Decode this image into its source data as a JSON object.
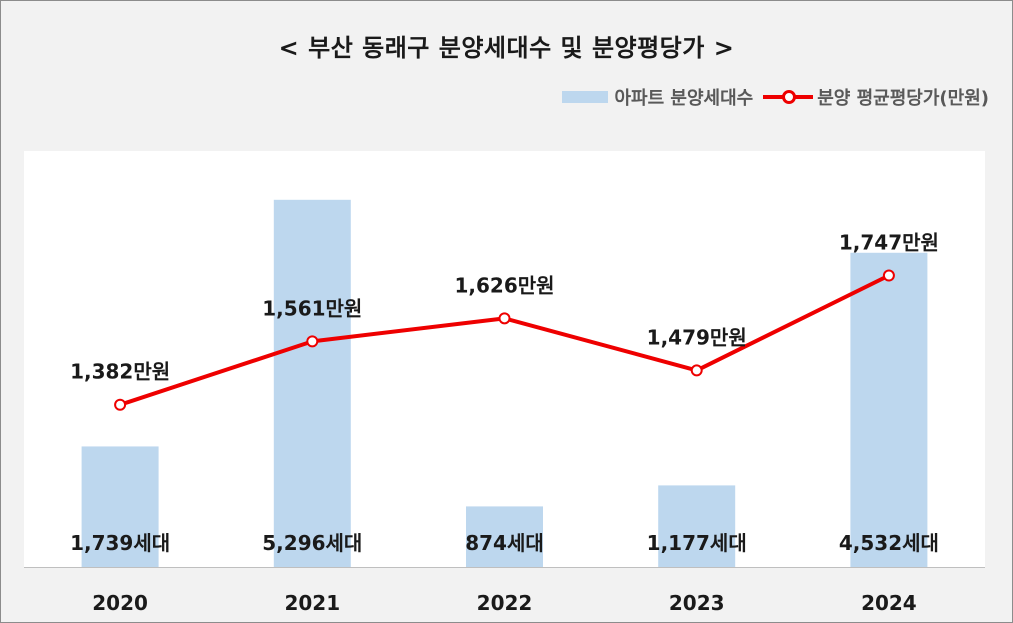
{
  "title": "< 부산 동래구 분양세대수 및 분양평당가 >",
  "legend": {
    "bar_label": "아파트 분양세대수",
    "line_label": "분양 평균평당가(만원)"
  },
  "colors": {
    "bar": "#bdd7ee",
    "line": "#ee0000",
    "plot_bg": "#ffffff",
    "page_bg": "#f2f2f2"
  },
  "chart_data": {
    "type": "bar",
    "title": "< 부산 동래구 분양세대수 및 분양평당가 >",
    "categories": [
      "2020",
      "2021",
      "2022",
      "2023",
      "2024"
    ],
    "series": [
      {
        "name": "아파트 분양세대수",
        "type": "bar",
        "values": [
          1739,
          5296,
          874,
          1177,
          4532
        ],
        "data_labels": [
          "1,739세대",
          "5,296세대",
          "874세대",
          "1,177세대",
          "4,532세대"
        ]
      },
      {
        "name": "분양 평균평당가(만원)",
        "type": "line",
        "values": [
          1382,
          1561,
          1626,
          1479,
          1747
        ],
        "data_labels": [
          "1,382만원",
          "1,561만원",
          "1,626만원",
          "1,479만원",
          "1,747만원"
        ]
      }
    ],
    "legend_position": "top-right",
    "grid": false
  }
}
